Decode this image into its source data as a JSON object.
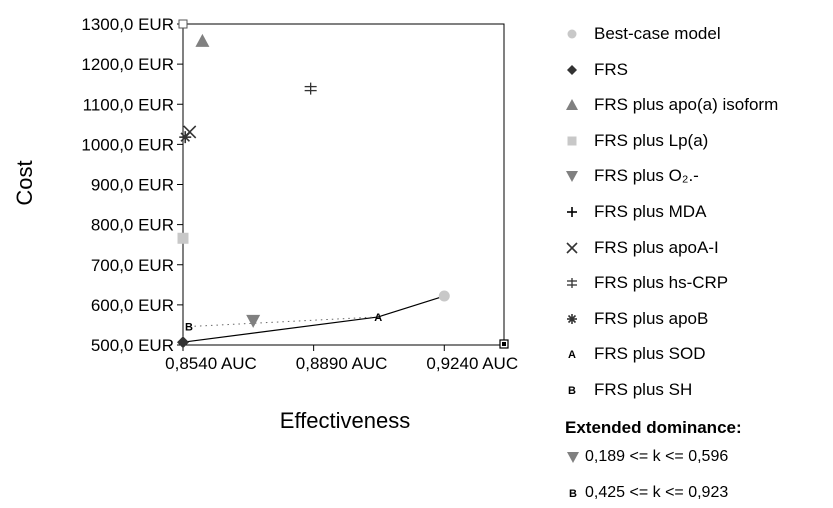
{
  "chart_data": {
    "type": "scatter",
    "xlabel": "Effectiveness",
    "ylabel": "Cost",
    "xlim": [
      0.854,
      0.94
    ],
    "ylim": [
      500,
      1300
    ],
    "x_ticks": [
      {
        "value": 0.854,
        "label": "0,8540 AUC"
      },
      {
        "value": 0.889,
        "label": "0,8890 AUC"
      },
      {
        "value": 0.924,
        "label": "0,9240 AUC"
      }
    ],
    "y_ticks": [
      {
        "value": 500,
        "label": "500,0 EUR"
      },
      {
        "value": 600,
        "label": "600,0 EUR"
      },
      {
        "value": 700,
        "label": "700,0 EUR"
      },
      {
        "value": 800,
        "label": "800,0 EUR"
      },
      {
        "value": 900,
        "label": "900,0 EUR"
      },
      {
        "value": 1000,
        "label": "1000,0 EUR"
      },
      {
        "value": 1100,
        "label": "1100,0 EUR"
      },
      {
        "value": 1200,
        "label": "1200,0 EUR"
      },
      {
        "value": 1300,
        "label": "1300,0 EUR"
      }
    ],
    "grid": false,
    "legend_position": "right",
    "series": [
      {
        "name": "Best-case model",
        "marker": "circle",
        "color": "#c8c8c8",
        "points": [
          {
            "x": 0.924,
            "y": 622
          }
        ]
      },
      {
        "name": "FRS",
        "marker": "diamond",
        "color": "#333333",
        "points": [
          {
            "x": 0.854,
            "y": 507
          }
        ]
      },
      {
        "name": "FRS plus apo(a) isoform",
        "marker": "triangle-up",
        "color": "#808080",
        "points": [
          {
            "x": 0.8592,
            "y": 1258
          }
        ]
      },
      {
        "name": "FRS plus Lp(a)",
        "marker": "square",
        "color": "#c8c8c8",
        "points": [
          {
            "x": 0.854,
            "y": 766
          }
        ]
      },
      {
        "name": "FRS plus O₂.-",
        "marker": "triangle-down",
        "color": "#808080",
        "points": [
          {
            "x": 0.8728,
            "y": 560
          }
        ]
      },
      {
        "name": "FRS plus MDA",
        "marker": "plus",
        "color": "#000000",
        "points": []
      },
      {
        "name": "FRS plus apoA-I",
        "marker": "x",
        "color": "#333333",
        "points": [
          {
            "x": 0.8558,
            "y": 1031
          }
        ]
      },
      {
        "name": "FRS plus hs-CRP",
        "marker": "double-cross",
        "color": "#333333",
        "points": [
          {
            "x": 0.8882,
            "y": 1139
          }
        ]
      },
      {
        "name": "FRS plus apoB",
        "marker": "asterisk",
        "color": "#333333",
        "points": [
          {
            "x": 0.8546,
            "y": 1018
          }
        ]
      },
      {
        "name": "FRS plus SOD",
        "marker": "letter-A",
        "color": "#000000",
        "points": [
          {
            "x": 0.9063,
            "y": 570
          }
        ]
      },
      {
        "name": "FRS plus SH",
        "marker": "letter-B",
        "color": "#000000",
        "points": [
          {
            "x": 0.8556,
            "y": 546
          }
        ]
      }
    ],
    "efficient_frontier": [
      {
        "x": 0.854,
        "y": 507
      },
      {
        "x": 0.9063,
        "y": 570
      },
      {
        "x": 0.924,
        "y": 622
      }
    ],
    "dominated_dotted_line": [
      {
        "x": 0.8556,
        "y": 546
      },
      {
        "x": 0.9063,
        "y": 570
      }
    ]
  },
  "legend": {
    "items": [
      {
        "label": "Best-case model",
        "marker": "circle",
        "color": "#c8c8c8"
      },
      {
        "label": "FRS",
        "marker": "diamond",
        "color": "#333333"
      },
      {
        "label": "FRS plus apo(a) isoform",
        "marker": "triangle-up",
        "color": "#808080"
      },
      {
        "label": "FRS plus Lp(a)",
        "marker": "square",
        "color": "#c8c8c8"
      },
      {
        "label": "FRS plus O₂.-",
        "marker": "triangle-down",
        "color": "#808080"
      },
      {
        "label": "FRS plus MDA",
        "marker": "plus",
        "color": "#000000"
      },
      {
        "label": "FRS plus apoA-I",
        "marker": "x",
        "color": "#333333"
      },
      {
        "label": "FRS plus hs-CRP",
        "marker": "double-cross",
        "color": "#333333"
      },
      {
        "label": "FRS plus apoB",
        "marker": "asterisk",
        "color": "#333333"
      },
      {
        "label": "FRS plus SOD",
        "marker": "letter-A",
        "color": "#000000"
      },
      {
        "label": "FRS plus SH",
        "marker": "letter-B",
        "color": "#000000"
      }
    ]
  },
  "dominance": {
    "title": "Extended dominance:",
    "rows": [
      {
        "marker": "triangle-down",
        "color": "#808080",
        "text": "0,189 <= k <= 0,596"
      },
      {
        "marker": "letter-B",
        "color": "#000000",
        "text": "0,425 <= k <= 0,923"
      }
    ]
  }
}
